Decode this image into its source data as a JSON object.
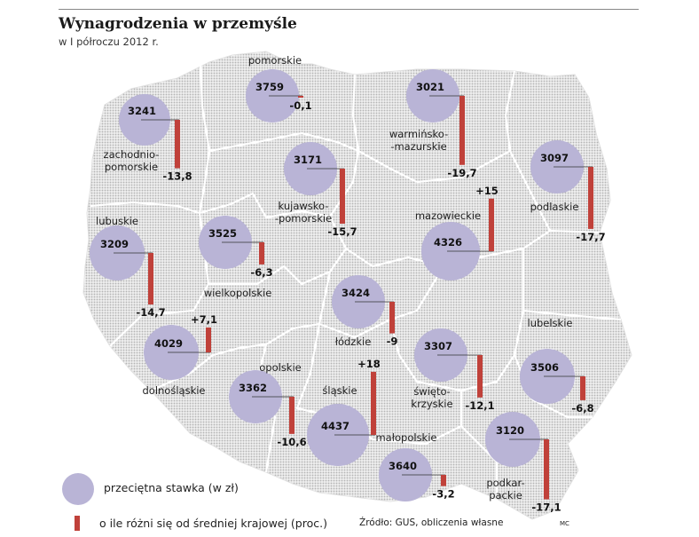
{
  "title": "Wynagrodzenia w przemyśle",
  "subtitle": "w I półroczu 2012 r.",
  "legend": {
    "circle_label": "przeciętna stawka (w zł)",
    "bar_label": "o ile różni się od średniej krajowej (proc.)"
  },
  "source": "Źródło: GUS, obliczenia własne",
  "author": "MC",
  "colors": {
    "circle": "#b9b4d6",
    "bar": "#c0413a",
    "map_dots": "#b5b5b5",
    "borders": "#ffffff"
  },
  "regions": [
    {
      "id": "pomorskie",
      "name_lines": [
        "pomorskie"
      ],
      "wage": "3759",
      "diff": "-0,1",
      "diff_value": -0.1
    },
    {
      "id": "zachodniopomorskie",
      "name_lines": [
        "zachodnio-",
        "pomorskie"
      ],
      "wage": "3241",
      "diff": "-13,8",
      "diff_value": -13.8
    },
    {
      "id": "warminsko-mazurskie",
      "name_lines": [
        "warmińsko-",
        "-mazurskie"
      ],
      "wage": "3021",
      "diff": "-19,7",
      "diff_value": -19.7
    },
    {
      "id": "kujawsko-pomorskie",
      "name_lines": [
        "kujawsko-",
        "-pomorskie"
      ],
      "wage": "3171",
      "diff": "-15,7",
      "diff_value": -15.7
    },
    {
      "id": "podlaskie",
      "name_lines": [
        "podlaskie"
      ],
      "wage": "3097",
      "diff": "-17,7",
      "diff_value": -17.7
    },
    {
      "id": "mazowieckie",
      "name_lines": [
        "mazowieckie"
      ],
      "wage": "4326",
      "diff": "+15",
      "diff_value": 15
    },
    {
      "id": "lubuskie",
      "name_lines": [
        "lubuskie"
      ],
      "wage": "3209",
      "diff": "-14,7",
      "diff_value": -14.7
    },
    {
      "id": "wielkopolskie",
      "name_lines": [
        "wielkopolskie"
      ],
      "wage": "3525",
      "diff": "-6,3",
      "diff_value": -6.3
    },
    {
      "id": "lodzkie",
      "name_lines": [
        "łódzkie"
      ],
      "wage": "3424",
      "diff": "-9",
      "diff_value": -9
    },
    {
      "id": "dolnoslaskie",
      "name_lines": [
        "dolnośląskie"
      ],
      "wage": "4029",
      "diff": "+7,1",
      "diff_value": 7.1
    },
    {
      "id": "opolskie",
      "name_lines": [
        "opolskie"
      ],
      "wage": "3362",
      "diff": "-10,6",
      "diff_value": -10.6
    },
    {
      "id": "slaskie",
      "name_lines": [
        "śląskie"
      ],
      "wage": "4437",
      "diff": "+18",
      "diff_value": 18
    },
    {
      "id": "swietokrzyskie",
      "name_lines": [
        "świętо-",
        "krzyskie"
      ],
      "wage": "3307",
      "diff": "-12,1",
      "diff_value": -12.1
    },
    {
      "id": "lubelskie",
      "name_lines": [
        "lubelskie"
      ],
      "wage": "3506",
      "diff": "-6,8",
      "diff_value": -6.8
    },
    {
      "id": "malopolskie",
      "name_lines": [
        "małopolskie"
      ],
      "wage": "3640",
      "diff": "-3,2",
      "diff_value": -3.2
    },
    {
      "id": "podkarpackie",
      "name_lines": [
        "podkar-",
        "packie"
      ],
      "wage": "3120",
      "diff": "-17,1",
      "diff_value": -17.1
    }
  ]
}
